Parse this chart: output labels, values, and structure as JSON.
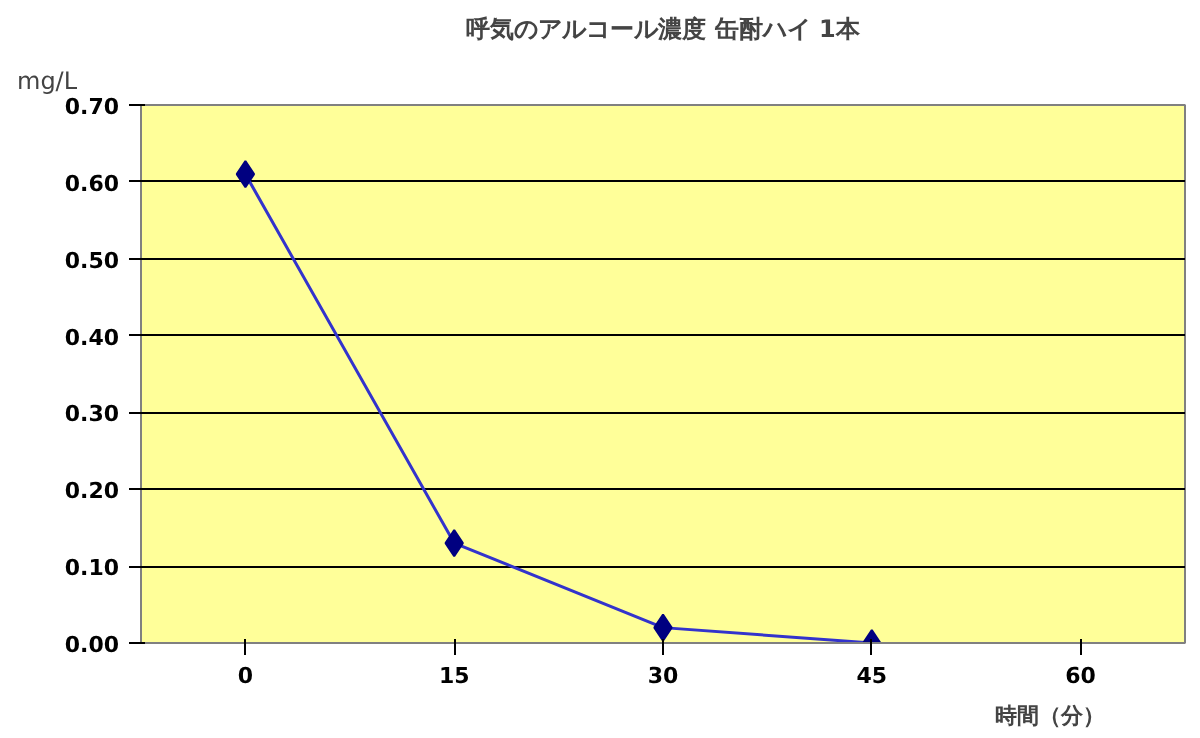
{
  "chart_data": {
    "type": "line",
    "title": "呼気のアルコール濃度 缶酎ハイ 1本",
    "ylabel": "mg/L",
    "xlabel": "時間（分）",
    "categories": [
      "0",
      "15",
      "30",
      "45",
      "60"
    ],
    "series": [
      {
        "color": "#000080",
        "values": [
          0.61,
          0.13,
          0.02,
          0.0,
          null
        ]
      }
    ],
    "ylim": [
      0,
      0.7
    ],
    "yticks": [
      {
        "value": 0,
        "label": "0.00"
      },
      {
        "value": 0.1,
        "label": "0.10"
      },
      {
        "value": 0.2,
        "label": "0.20"
      },
      {
        "value": 0.3,
        "label": "0.30"
      },
      {
        "value": 0.4,
        "label": "0.40"
      },
      {
        "value": 0.5,
        "label": "0.50"
      },
      {
        "value": 0.6,
        "label": "0.60"
      },
      {
        "value": 0.7,
        "label": "0.70"
      }
    ],
    "grid": "y",
    "marker": "diamond",
    "line_style": "solid"
  }
}
